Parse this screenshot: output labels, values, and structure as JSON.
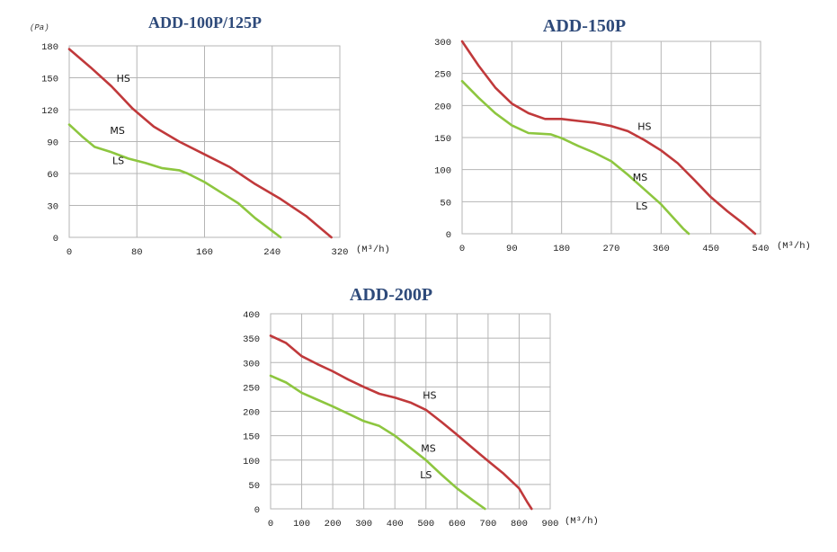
{
  "colors": {
    "hs": "#c0393b",
    "ms": "#8dc63f",
    "grid": "#b5b5b5",
    "title": "#2e4a7a"
  },
  "chart_data": [
    {
      "type": "line",
      "title": "ADD-100P/125P",
      "ylabel": "(Pa)",
      "xlabel": "(M³/h)",
      "xticks": [
        "0",
        "80",
        "160",
        "240",
        "320"
      ],
      "yticks": [
        "0",
        "30",
        "60",
        "90",
        "120",
        "150",
        "180"
      ],
      "xlim": [
        0,
        320
      ],
      "ylim": [
        0,
        180
      ],
      "grid": true,
      "series": [
        {
          "name": "HS",
          "x": [
            0,
            25,
            50,
            75,
            100,
            130,
            160,
            190,
            220,
            250,
            280,
            310
          ],
          "y": [
            177,
            160,
            142,
            121,
            104,
            90,
            78,
            66,
            50,
            36,
            20,
            0
          ]
        },
        {
          "name": "MS",
          "x": [
            0,
            15,
            30,
            50,
            70,
            90,
            110,
            130,
            140,
            160,
            180,
            200,
            220,
            240,
            250
          ],
          "y": [
            106,
            95,
            85,
            80,
            74,
            70,
            65,
            63,
            60,
            52,
            42,
            32,
            18,
            6,
            0
          ]
        }
      ],
      "annotations": [
        {
          "text": "HS",
          "x": 64,
          "y": 146
        },
        {
          "text": "MS",
          "x": 57,
          "y": 97
        },
        {
          "text": "LS",
          "x": 58,
          "y": 69
        }
      ]
    },
    {
      "type": "line",
      "title": "ADD-150P",
      "xlabel": "(M³/h)",
      "xticks": [
        "0",
        "90",
        "180",
        "270",
        "360",
        "450",
        "540"
      ],
      "yticks": [
        "0",
        "50",
        "100",
        "150",
        "200",
        "250",
        "300"
      ],
      "xlim": [
        0,
        540
      ],
      "ylim": [
        0,
        300
      ],
      "grid": true,
      "series": [
        {
          "name": "HS",
          "x": [
            0,
            30,
            60,
            90,
            120,
            150,
            180,
            210,
            240,
            270,
            300,
            330,
            360,
            390,
            420,
            450,
            480,
            510,
            530
          ],
          "y": [
            300,
            262,
            228,
            203,
            188,
            179,
            179,
            176,
            173,
            168,
            160,
            146,
            130,
            110,
            84,
            57,
            35,
            15,
            0
          ]
        },
        {
          "name": "MS",
          "x": [
            0,
            30,
            60,
            90,
            120,
            140,
            160,
            180,
            210,
            240,
            270,
            300,
            330,
            360,
            380,
            400,
            410
          ],
          "y": [
            238,
            212,
            188,
            169,
            157,
            156,
            155,
            149,
            137,
            126,
            113,
            92,
            69,
            46,
            27,
            8,
            0
          ]
        }
      ],
      "annotations": [
        {
          "text": "HS",
          "x": 330,
          "y": 162
        },
        {
          "text": "MS",
          "x": 322,
          "y": 83
        },
        {
          "text": "LS",
          "x": 325,
          "y": 38
        }
      ]
    },
    {
      "type": "line",
      "title": "ADD-200P",
      "xlabel": "(M³/h)",
      "xticks": [
        "0",
        "100",
        "200",
        "300",
        "400",
        "500",
        "600",
        "700",
        "800",
        "900"
      ],
      "yticks": [
        "0",
        "50",
        "100",
        "150",
        "200",
        "250",
        "300",
        "350",
        "400"
      ],
      "xlim": [
        0,
        900
      ],
      "ylim": [
        0,
        400
      ],
      "grid": true,
      "series": [
        {
          "name": "HS",
          "x": [
            0,
            50,
            100,
            150,
            200,
            250,
            300,
            350,
            400,
            450,
            500,
            550,
            600,
            650,
            700,
            750,
            800,
            825,
            840
          ],
          "y": [
            355,
            340,
            313,
            297,
            282,
            265,
            250,
            236,
            228,
            218,
            203,
            178,
            152,
            125,
            98,
            72,
            42,
            15,
            0
          ]
        },
        {
          "name": "MS",
          "x": [
            0,
            50,
            100,
            150,
            200,
            250,
            300,
            350,
            400,
            450,
            500,
            550,
            600,
            650,
            690
          ],
          "y": [
            273,
            259,
            238,
            224,
            210,
            195,
            180,
            170,
            150,
            125,
            100,
            70,
            42,
            18,
            0
          ]
        }
      ],
      "annotations": [
        {
          "text": "HS",
          "x": 512,
          "y": 226
        },
        {
          "text": "MS",
          "x": 508,
          "y": 117
        },
        {
          "text": "LS",
          "x": 500,
          "y": 63
        }
      ]
    }
  ]
}
